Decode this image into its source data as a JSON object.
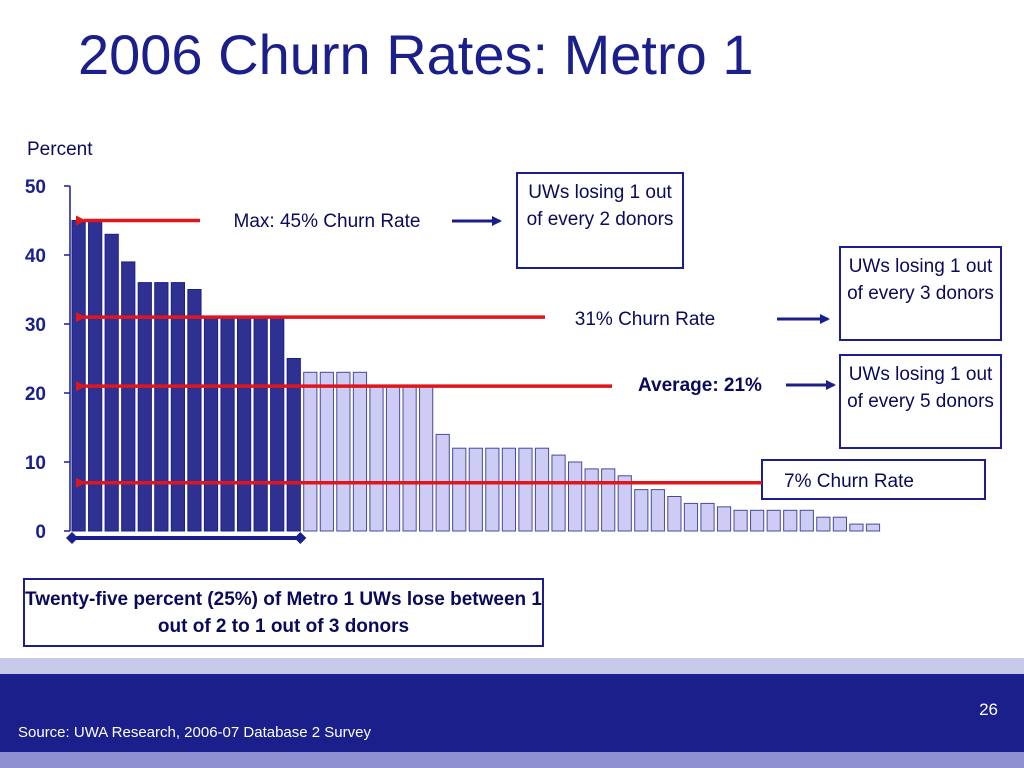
{
  "title": "2006 Churn Rates: Metro 1",
  "colors": {
    "dark_bar": "#2e3192",
    "light_bar": "#ccccf5",
    "arrow_red": "#e0161b",
    "navy": "#1a1f8c"
  },
  "chart_data": {
    "type": "bar",
    "ylabel": "Percent",
    "ylim": [
      0,
      50
    ],
    "yticks": [
      "0",
      "10",
      "20",
      "30",
      "40",
      "50"
    ],
    "grid": false,
    "values": [
      45,
      45,
      43,
      39,
      36,
      36,
      36,
      35,
      31,
      31,
      31,
      31,
      31,
      25,
      23,
      23,
      23,
      23,
      21,
      21,
      21,
      21,
      14,
      12,
      12,
      12,
      12,
      12,
      12,
      11,
      10,
      9,
      9,
      8,
      6,
      6,
      5,
      4,
      4,
      3.5,
      3,
      3,
      3,
      3,
      3,
      2,
      2,
      1,
      1
    ],
    "highlight_count": 14,
    "annotations": [
      {
        "label": "Max: 45% Churn Rate",
        "value": 45,
        "bold": false
      },
      {
        "label": "31% Churn Rate",
        "value": 31,
        "bold": false
      },
      {
        "label": "Average: 21%",
        "value": 21,
        "bold": true
      },
      {
        "label": "7% Churn Rate",
        "value": 7,
        "bold": false,
        "boxed": true
      }
    ]
  },
  "callouts": [
    "UWs losing 1 out of every 2 donors",
    "UWs losing 1 out of every 3 donors",
    "UWs losing 1 out of every 5 donors"
  ],
  "summary": "Twenty-five percent (25%) of Metro 1 UWs lose between 1 out of 2 to 1 out of 3 donors",
  "footer": {
    "page_number": "26",
    "source": "Source: UWA Research, 2006-07 Database 2 Survey"
  }
}
